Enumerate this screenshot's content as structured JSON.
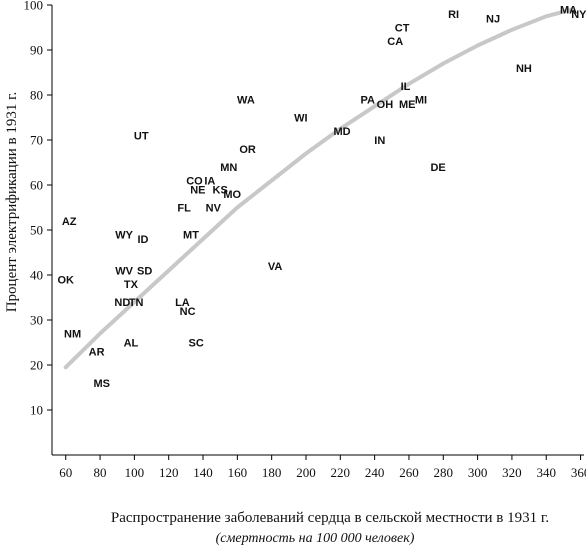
{
  "chart_data": {
    "type": "scatter",
    "title": "",
    "xlabel": "Распространение заболеваний сердца в сельской местности в 1931 г.",
    "xlabel_sub": "(смертность на 100 000 человек)",
    "ylabel": "Процент электрификации в 1931 г.",
    "xlim": [
      52,
      362
    ],
    "ylim": [
      0,
      100
    ],
    "x_ticks": [
      60,
      80,
      100,
      120,
      140,
      160,
      180,
      200,
      220,
      240,
      260,
      280,
      300,
      320,
      340,
      360
    ],
    "y_ticks": [
      10,
      20,
      30,
      40,
      50,
      60,
      70,
      80,
      90,
      100
    ],
    "grid": false,
    "colors": {
      "points": "#111111",
      "trend": "#c8c8c8",
      "axes": "#000000"
    },
    "points": [
      {
        "label": "AZ",
        "x": 62,
        "y": 52
      },
      {
        "label": "OK",
        "x": 60,
        "y": 39
      },
      {
        "label": "NM",
        "x": 64,
        "y": 27
      },
      {
        "label": "AR",
        "x": 78,
        "y": 23
      },
      {
        "label": "MS",
        "x": 81,
        "y": 16
      },
      {
        "label": "AL",
        "x": 98,
        "y": 25
      },
      {
        "label": "UT",
        "x": 104,
        "y": 71
      },
      {
        "label": "WY",
        "x": 94,
        "y": 49
      },
      {
        "label": "ID",
        "x": 105,
        "y": 48
      },
      {
        "label": "WV",
        "x": 94,
        "y": 41
      },
      {
        "label": "SD",
        "x": 106,
        "y": 41
      },
      {
        "label": "TX",
        "x": 98,
        "y": 38
      },
      {
        "label": "ND",
        "x": 93,
        "y": 34
      },
      {
        "label": "TN",
        "x": 101,
        "y": 34
      },
      {
        "label": "LA",
        "x": 128,
        "y": 34
      },
      {
        "label": "NC",
        "x": 131,
        "y": 32
      },
      {
        "label": "SC",
        "x": 136,
        "y": 25
      },
      {
        "label": "FL",
        "x": 129,
        "y": 55
      },
      {
        "label": "MT",
        "x": 133,
        "y": 49
      },
      {
        "label": "NV",
        "x": 146,
        "y": 55
      },
      {
        "label": "CO",
        "x": 135,
        "y": 61
      },
      {
        "label": "IA",
        "x": 144,
        "y": 61
      },
      {
        "label": "NE",
        "x": 137,
        "y": 59
      },
      {
        "label": "KS",
        "x": 150,
        "y": 59
      },
      {
        "label": "MO",
        "x": 157,
        "y": 58
      },
      {
        "label": "MN",
        "x": 155,
        "y": 64
      },
      {
        "label": "OR",
        "x": 166,
        "y": 68
      },
      {
        "label": "WA",
        "x": 165,
        "y": 79
      },
      {
        "label": "VA",
        "x": 182,
        "y": 42
      },
      {
        "label": "WI",
        "x": 197,
        "y": 75
      },
      {
        "label": "MD",
        "x": 221,
        "y": 72
      },
      {
        "label": "IN",
        "x": 243,
        "y": 70
      },
      {
        "label": "PA",
        "x": 236,
        "y": 79
      },
      {
        "label": "OH",
        "x": 246,
        "y": 78
      },
      {
        "label": "ME",
        "x": 259,
        "y": 78
      },
      {
        "label": "MI",
        "x": 267,
        "y": 79
      },
      {
        "label": "IL",
        "x": 258,
        "y": 82
      },
      {
        "label": "DE",
        "x": 277,
        "y": 64
      },
      {
        "label": "CT",
        "x": 256,
        "y": 95
      },
      {
        "label": "CA",
        "x": 252,
        "y": 92
      },
      {
        "label": "RI",
        "x": 286,
        "y": 98
      },
      {
        "label": "NJ",
        "x": 309,
        "y": 97
      },
      {
        "label": "NH",
        "x": 327,
        "y": 86
      },
      {
        "label": "MA",
        "x": 353,
        "y": 99
      },
      {
        "label": "NY",
        "x": 359,
        "y": 98
      }
    ],
    "trend": [
      [
        60,
        19.5
      ],
      [
        80,
        27
      ],
      [
        100,
        34
      ],
      [
        120,
        41
      ],
      [
        140,
        48
      ],
      [
        160,
        55
      ],
      [
        180,
        61
      ],
      [
        200,
        67
      ],
      [
        220,
        72.5
      ],
      [
        240,
        77.5
      ],
      [
        260,
        82.5
      ],
      [
        280,
        87
      ],
      [
        300,
        91
      ],
      [
        320,
        94.5
      ],
      [
        340,
        97.5
      ],
      [
        355,
        99
      ]
    ]
  }
}
